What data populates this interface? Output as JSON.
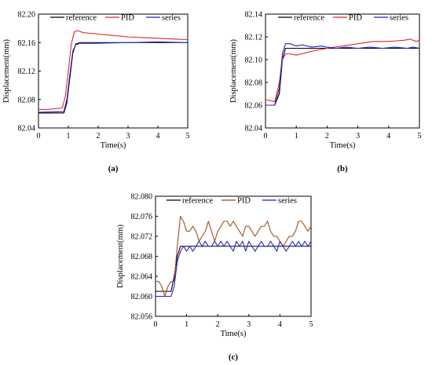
{
  "colors": {
    "reference": "#000000",
    "pid_ab": "#e8242a",
    "pid_c": "#9c4a1a",
    "series": "#1f22c8"
  },
  "chart_data": [
    {
      "type": "line",
      "panel_label": "(a)",
      "xlabel": "Time(s)",
      "ylabel": "Displacement(mm)",
      "xlim": [
        0,
        5
      ],
      "ylim": [
        82.04,
        82.2
      ],
      "xticks": [
        "0",
        "1",
        "2",
        "3",
        "4",
        "5"
      ],
      "yticks": [
        "82.04",
        "82.08",
        "82.12",
        "82.16",
        "82.20"
      ],
      "legend": [
        "reference",
        "PID",
        "series"
      ],
      "legend_placement": "top",
      "series": [
        {
          "name": "reference",
          "color_key": "reference",
          "x": [
            0,
            0.85,
            0.95,
            1.05,
            1.15,
            1.25,
            1.4,
            5
          ],
          "y": [
            82.061,
            82.061,
            82.075,
            82.11,
            82.145,
            82.158,
            82.16,
            82.16
          ]
        },
        {
          "name": "PID",
          "color_key": "pid_ab",
          "x": [
            0,
            0.3,
            0.8,
            0.9,
            1.0,
            1.1,
            1.2,
            1.3,
            1.5,
            2,
            2.5,
            3,
            3.5,
            4,
            4.5,
            5
          ],
          "y": [
            82.066,
            82.066,
            82.068,
            82.085,
            82.12,
            82.158,
            82.175,
            82.177,
            82.174,
            82.172,
            82.17,
            82.168,
            82.167,
            82.166,
            82.165,
            82.164
          ]
        },
        {
          "name": "series",
          "color_key": "series",
          "x": [
            0,
            0.85,
            0.95,
            1.05,
            1.15,
            1.25,
            1.4,
            2,
            3,
            4,
            5
          ],
          "y": [
            82.062,
            82.063,
            82.08,
            82.115,
            82.148,
            82.157,
            82.159,
            82.159,
            82.16,
            82.161,
            82.16
          ]
        }
      ]
    },
    {
      "type": "line",
      "panel_label": "(b)",
      "xlabel": "Time(s)",
      "ylabel": "Displacement(mm)",
      "xlim": [
        0,
        5
      ],
      "ylim": [
        82.04,
        82.14
      ],
      "xticks": [
        "0",
        "1",
        "2",
        "3",
        "4",
        "5"
      ],
      "yticks": [
        "82.04",
        "82.06",
        "82.08",
        "82.10",
        "82.12",
        "82.14"
      ],
      "legend": [
        "reference",
        "PID",
        "series"
      ],
      "legend_placement": "top",
      "series": [
        {
          "name": "reference",
          "color_key": "reference",
          "x": [
            0,
            0.3,
            0.45,
            0.55,
            0.65,
            5
          ],
          "y": [
            82.06,
            82.06,
            82.07,
            82.1,
            82.11,
            82.11
          ]
        },
        {
          "name": "PID",
          "color_key": "pid_ab",
          "x": [
            0,
            0.15,
            0.3,
            0.45,
            0.55,
            0.65,
            0.8,
            1.0,
            1.3,
            1.6,
            2.0,
            2.5,
            3.0,
            3.5,
            4.0,
            4.5,
            4.7,
            4.9,
            5.0
          ],
          "y": [
            82.065,
            82.064,
            82.063,
            82.08,
            82.1,
            82.105,
            82.105,
            82.104,
            82.106,
            82.108,
            82.11,
            82.112,
            82.114,
            82.116,
            82.116,
            82.117,
            82.118,
            82.116,
            82.117
          ]
        },
        {
          "name": "series",
          "color_key": "series",
          "x": [
            0,
            0.3,
            0.45,
            0.55,
            0.65,
            0.8,
            1.0,
            1.2,
            1.5,
            1.8,
            2.0,
            2.3,
            2.6,
            3.0,
            3.4,
            3.8,
            4.2,
            4.6,
            4.8,
            5.0
          ],
          "y": [
            82.06,
            82.06,
            82.075,
            82.105,
            82.114,
            82.114,
            82.112,
            82.113,
            82.111,
            82.112,
            82.111,
            82.11,
            82.111,
            82.11,
            82.111,
            82.11,
            82.111,
            82.11,
            82.111,
            82.11
          ]
        }
      ]
    },
    {
      "type": "line",
      "panel_label": "(c)",
      "xlabel": "Time(s)",
      "ylabel": "Displacement(mm)",
      "xlim": [
        0,
        5
      ],
      "ylim": [
        82.056,
        82.08
      ],
      "xticks": [
        "0",
        "1",
        "2",
        "3",
        "4",
        "5"
      ],
      "yticks": [
        "82.056",
        "82.060",
        "82.064",
        "82.068",
        "82.072",
        "82.076",
        "82.080"
      ],
      "legend": [
        "reference",
        "PID",
        "series"
      ],
      "legend_placement": "top",
      "series": [
        {
          "name": "reference",
          "color_key": "reference",
          "x": [
            0,
            0.5,
            0.6,
            0.7,
            0.8,
            5
          ],
          "y": [
            82.061,
            82.061,
            82.064,
            82.068,
            82.07,
            82.07
          ]
        },
        {
          "name": "PID",
          "color_key": "pid_c",
          "x": [
            0,
            0.1,
            0.2,
            0.3,
            0.4,
            0.5,
            0.6,
            0.7,
            0.8,
            0.9,
            1.0,
            1.1,
            1.2,
            1.3,
            1.4,
            1.5,
            1.6,
            1.7,
            1.8,
            1.9,
            2.0,
            2.1,
            2.2,
            2.3,
            2.4,
            2.5,
            2.6,
            2.7,
            2.8,
            2.9,
            3.0,
            3.1,
            3.2,
            3.3,
            3.4,
            3.5,
            3.6,
            3.7,
            3.8,
            3.9,
            4.0,
            4.1,
            4.2,
            4.3,
            4.4,
            4.5,
            4.6,
            4.7,
            4.8,
            4.9,
            5.0
          ],
          "y": [
            82.063,
            82.063,
            82.062,
            82.06,
            82.062,
            82.063,
            82.063,
            82.07,
            82.076,
            82.075,
            82.073,
            82.073,
            82.074,
            82.073,
            82.071,
            82.072,
            82.073,
            82.075,
            82.073,
            82.071,
            82.073,
            82.074,
            82.075,
            82.075,
            82.074,
            82.075,
            82.074,
            82.073,
            82.072,
            82.074,
            82.074,
            82.073,
            82.072,
            82.073,
            82.074,
            82.074,
            82.075,
            82.073,
            82.072,
            82.072,
            82.071,
            82.07,
            82.071,
            82.072,
            82.072,
            82.073,
            82.075,
            82.075,
            82.074,
            82.073,
            82.074
          ]
        },
        {
          "name": "series",
          "color_key": "series",
          "x": [
            0,
            0.5,
            0.6,
            0.7,
            0.8,
            0.9,
            1.0,
            1.1,
            1.2,
            1.3,
            1.4,
            1.5,
            1.6,
            1.7,
            1.8,
            1.9,
            2.0,
            2.1,
            2.2,
            2.3,
            2.4,
            2.5,
            2.6,
            2.7,
            2.8,
            2.9,
            3.0,
            3.1,
            3.2,
            3.3,
            3.4,
            3.5,
            3.6,
            3.7,
            3.8,
            3.9,
            4.0,
            4.1,
            4.2,
            4.3,
            4.4,
            4.5,
            4.6,
            4.7,
            4.8,
            4.9,
            5.0
          ],
          "y": [
            82.06,
            82.06,
            82.062,
            82.067,
            82.069,
            82.07,
            82.069,
            82.07,
            82.069,
            82.07,
            82.071,
            82.07,
            82.071,
            82.07,
            82.07,
            82.071,
            82.07,
            82.071,
            82.07,
            82.071,
            82.07,
            82.069,
            82.071,
            82.07,
            82.071,
            82.069,
            82.071,
            82.07,
            82.069,
            82.07,
            82.071,
            82.07,
            82.07,
            82.071,
            82.07,
            82.069,
            82.071,
            82.07,
            82.069,
            82.07,
            82.071,
            82.07,
            82.071,
            82.07,
            82.071,
            82.07,
            82.071
          ]
        }
      ]
    }
  ]
}
